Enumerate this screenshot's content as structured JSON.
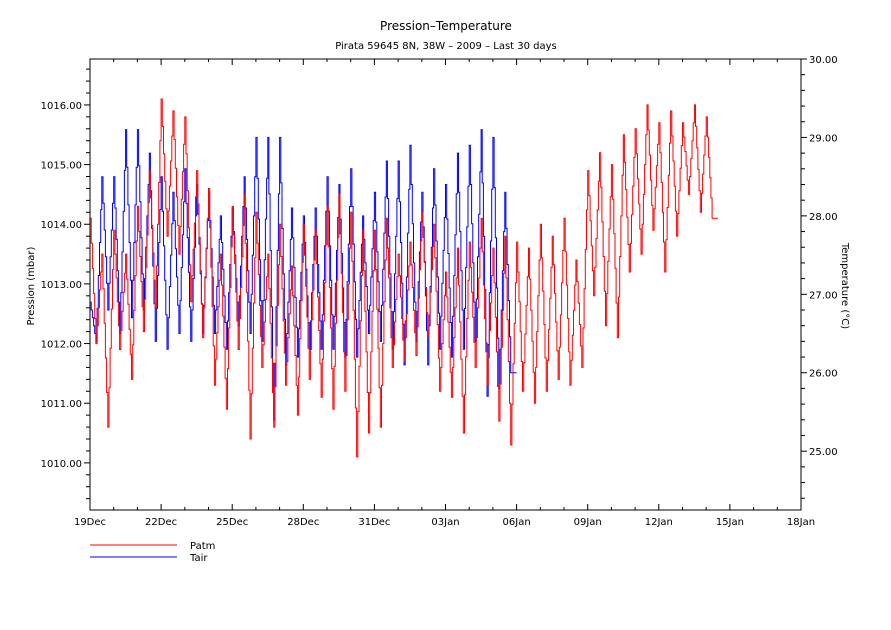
{
  "chart_data": {
    "type": "line",
    "title": "Pression–Temperature",
    "subtitle": "Pirata 59645 8N, 38W – 2009 – Last 30 days",
    "xlabel": "",
    "ylabel": "Pression (mbar)",
    "y2label": "Temperature (°C)",
    "x_unit": "days since 19Dec",
    "xlim": [
      0,
      30
    ],
    "ylim": [
      1009.21,
      1016.77
    ],
    "y2lim": [
      24.25,
      30.0
    ],
    "x_ticks": [
      {
        "value": 0,
        "label": "19Dec"
      },
      {
        "value": 3,
        "label": "22Dec"
      },
      {
        "value": 6,
        "label": "25Dec"
      },
      {
        "value": 9,
        "label": "28Dec"
      },
      {
        "value": 12,
        "label": "31Dec"
      },
      {
        "value": 15,
        "label": "03Jan"
      },
      {
        "value": 18,
        "label": "06Jan"
      },
      {
        "value": 21,
        "label": "09Jan"
      },
      {
        "value": 24,
        "label": "12Jan"
      },
      {
        "value": 27,
        "label": "15Jan"
      },
      {
        "value": 30,
        "label": "18Jan"
      }
    ],
    "y_ticks": [
      {
        "value": 1010,
        "label": "1010.00"
      },
      {
        "value": 1011,
        "label": "1011.00"
      },
      {
        "value": 1012,
        "label": "1012.00"
      },
      {
        "value": 1013,
        "label": "1013.00"
      },
      {
        "value": 1014,
        "label": "1014.00"
      },
      {
        "value": 1015,
        "label": "1015.00"
      },
      {
        "value": 1016,
        "label": "1016.00"
      }
    ],
    "y2_ticks": [
      {
        "value": 25,
        "label": "25.00"
      },
      {
        "value": 26,
        "label": "26.00"
      },
      {
        "value": 27,
        "label": "27.00"
      },
      {
        "value": 28,
        "label": "28.00"
      },
      {
        "value": 29,
        "label": "29.00"
      },
      {
        "value": 30,
        "label": "30.00"
      }
    ],
    "legend_position": "bottom-left",
    "grid": false,
    "series": [
      {
        "name": "Patm",
        "axis": "left",
        "color": "#ff0000",
        "sampling_hours": 6,
        "x_start": 0,
        "values": [
          1014.1,
          1012.0,
          1013.5,
          1010.6,
          1013.9,
          1011.9,
          1013.5,
          1011.4,
          1014.3,
          1012.2,
          1014.9,
          1012.6,
          1016.1,
          1013.8,
          1015.9,
          1013.5,
          1015.8,
          1012.7,
          1014.9,
          1012.1,
          1014.6,
          1011.3,
          1013.5,
          1010.9,
          1014.3,
          1011.9,
          1014.5,
          1010.4,
          1014.2,
          1011.6,
          1013.5,
          1010.6,
          1014.0,
          1011.3,
          1013.3,
          1010.8,
          1014.0,
          1011.4,
          1013.9,
          1011.1,
          1014.3,
          1010.9,
          1014.5,
          1011.2,
          1014.2,
          1010.1,
          1013.9,
          1010.5,
          1013.9,
          1010.6,
          1014.1,
          1011.6,
          1013.5,
          1011.7,
          1013.7,
          1011.8,
          1014.2,
          1012.1,
          1014.0,
          1011.2,
          1013.2,
          1011.1,
          1013.6,
          1010.5,
          1013.7,
          1011.6,
          1014.1,
          1011.3,
          1013.6,
          1010.7,
          1013.8,
          1010.3,
          1013.7,
          1011.2,
          1013.6,
          1011.0,
          1014.0,
          1011.2,
          1013.8,
          1011.4,
          1014.1,
          1011.3,
          1013.4,
          1011.6,
          1014.9,
          1012.8,
          1015.2,
          1012.3,
          1015.0,
          1012.1,
          1015.5,
          1013.2,
          1015.6,
          1013.5,
          1016.0,
          1013.9,
          1015.7,
          1013.2,
          1015.9,
          1013.8,
          1015.7,
          1014.5,
          1016.0,
          1014.2,
          1015.8,
          1014.1
        ]
      },
      {
        "name": "Tair",
        "axis": "right",
        "color": "#0000ff",
        "sampling_hours": 6,
        "x_start": 0,
        "values": [
          26.9,
          26.4,
          28.5,
          26.8,
          28.5,
          26.5,
          29.1,
          26.7,
          29.1,
          26.8,
          28.8,
          26.4,
          28.5,
          26.3,
          28.3,
          26.5,
          28.6,
          26.4,
          28.4,
          26.5,
          28.3,
          26.5,
          28.0,
          26.3,
          28.1,
          26.6,
          28.5,
          26.5,
          29.0,
          26.4,
          29.0,
          25.4,
          29.0,
          26.1,
          28.1,
          26.2,
          28.0,
          26.3,
          28.1,
          26.3,
          28.5,
          26.3,
          28.4,
          26.2,
          28.6,
          26.2,
          28.0,
          26.5,
          28.3,
          26.4,
          28.7,
          26.3,
          28.7,
          26.1,
          28.9,
          26.4,
          28.3,
          26.1,
          28.6,
          26.3,
          28.4,
          26.2,
          28.8,
          26.3,
          28.9,
          26.4,
          29.1,
          25.7,
          29.0,
          25.8,
          28.3,
          26.0
        ]
      }
    ]
  },
  "legend": {
    "items": [
      "Patm",
      "Tair"
    ]
  }
}
